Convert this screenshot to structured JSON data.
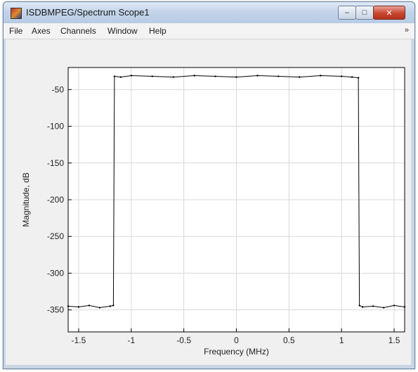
{
  "window": {
    "title": "ISDBMPEG/Spectrum Scope1",
    "minimize_label": "–",
    "maximize_label": "□",
    "close_label": "✕"
  },
  "menu": {
    "items": [
      "File",
      "Axes",
      "Channels",
      "Window",
      "Help"
    ],
    "overflow_label": "»"
  },
  "icons": {
    "app": "matlab-figure-icon",
    "minimize": "minimize-icon",
    "maximize": "maximize-icon",
    "close": "close-icon"
  },
  "colors": {
    "trace": "#000000",
    "grid": "#d9d9d9",
    "plot_bg": "#ffffff",
    "figure_bg": "#f0f0f0"
  },
  "chart_data": {
    "type": "line",
    "xlabel": "Frequency (MHz)",
    "ylabel": "Magnitude, dB",
    "xlim": [
      -1.6,
      1.6
    ],
    "ylim": [
      -380,
      -20
    ],
    "xticks": [
      -1.5,
      -1,
      -0.5,
      0,
      0.5,
      1,
      1.5
    ],
    "yticks": [
      -50,
      -100,
      -150,
      -200,
      -250,
      -300,
      -350
    ],
    "grid": true,
    "series": [
      {
        "x": [
          -1.6,
          -1.5,
          -1.4,
          -1.3,
          -1.2,
          -1.17,
          -1.16,
          -1.1,
          -1.0,
          -0.8,
          -0.6,
          -0.4,
          -0.2,
          0,
          0.2,
          0.4,
          0.6,
          0.8,
          1.0,
          1.1,
          1.16,
          1.17,
          1.2,
          1.3,
          1.4,
          1.5,
          1.6
        ],
        "y": [
          -345,
          -346,
          -344,
          -347,
          -345,
          -344,
          -32,
          -33,
          -31,
          -32,
          -33,
          -31,
          -32,
          -33,
          -31,
          -32,
          -33,
          -31,
          -32,
          -33,
          -34,
          -344,
          -346,
          -345,
          -347,
          -344,
          -346
        ]
      }
    ]
  }
}
